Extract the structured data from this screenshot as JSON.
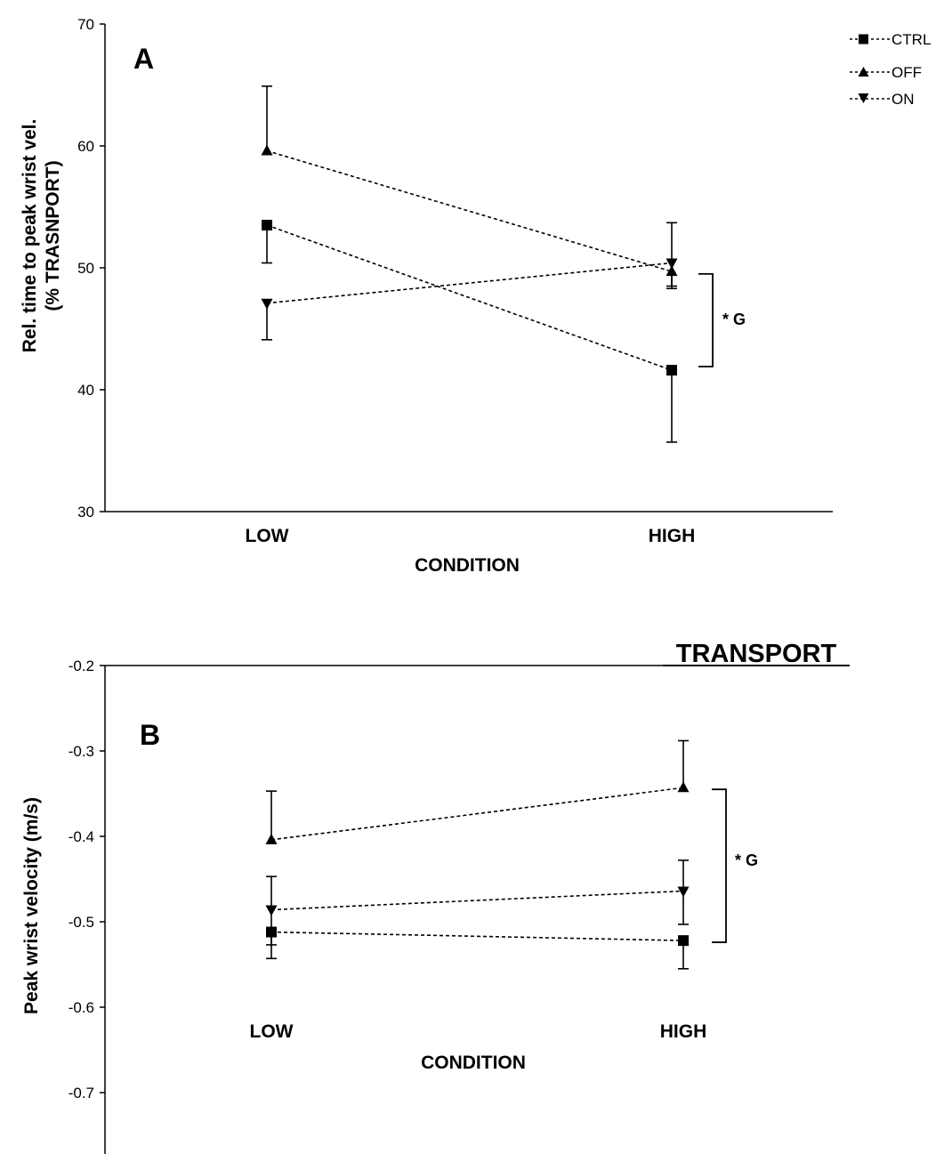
{
  "page": {
    "heading": "TRANSPORT"
  },
  "legend": {
    "entries": [
      {
        "label": "CTRL",
        "marker": "square"
      },
      {
        "label": "OFF",
        "marker": "triangle-up"
      },
      {
        "label": "ON",
        "marker": "triangle-down"
      }
    ],
    "placement": "top-right"
  },
  "chart_data": [
    {
      "type": "line",
      "panel_label": "A",
      "categories": [
        "LOW",
        "HIGH"
      ],
      "xlabel": "CONDITION",
      "ylabel_line1": "Rel. time to peak wrist vel.",
      "ylabel_line2": "(% TRASNPORT)",
      "ylim": [
        30,
        70
      ],
      "yticks": [
        30,
        40,
        50,
        60,
        70
      ],
      "series": [
        {
          "name": "CTRL",
          "marker": "square",
          "values": [
            53.5,
            41.6
          ],
          "err_upper": [
            53.5,
            41.6
          ],
          "err_lower": [
            50.4,
            35.7
          ]
        },
        {
          "name": "OFF",
          "marker": "triangle-up",
          "values": [
            59.6,
            49.7
          ],
          "err_upper": [
            64.9,
            53.7
          ],
          "err_lower": [
            59.6,
            48.3
          ]
        },
        {
          "name": "ON",
          "marker": "triangle-down",
          "values": [
            47.1,
            50.4
          ],
          "err_upper": [
            47.1,
            50.4
          ],
          "err_lower": [
            44.1,
            48.5
          ]
        }
      ],
      "annotation": {
        "text": "* G",
        "range": [
          41.9,
          49.5
        ]
      },
      "grid": false
    },
    {
      "type": "line",
      "panel_label": "B",
      "categories": [
        "LOW",
        "HIGH"
      ],
      "xlabel": "CONDITION",
      "ylabel": "Peak wrist velocity (m/s)",
      "ylim": [
        -0.8,
        -0.2
      ],
      "yticks": [
        -0.2,
        -0.3,
        -0.4,
        -0.5,
        -0.6,
        -0.7
      ],
      "series": [
        {
          "name": "CTRL",
          "marker": "square",
          "values": [
            -0.512,
            -0.522
          ],
          "err_upper": [
            -0.512,
            -0.522
          ],
          "err_lower": [
            -0.543,
            -0.555
          ]
        },
        {
          "name": "OFF",
          "marker": "triangle-up",
          "values": [
            -0.404,
            -0.343
          ],
          "err_upper": [
            -0.347,
            -0.288
          ],
          "err_lower": [
            -0.404,
            -0.343
          ]
        },
        {
          "name": "ON",
          "marker": "triangle-down",
          "values": [
            -0.486,
            -0.464
          ],
          "err_upper": [
            -0.447,
            -0.428
          ],
          "err_lower": [
            -0.527,
            -0.503
          ]
        }
      ],
      "annotation": {
        "text": "* G",
        "range": [
          -0.524,
          -0.345
        ]
      },
      "grid": false
    }
  ]
}
